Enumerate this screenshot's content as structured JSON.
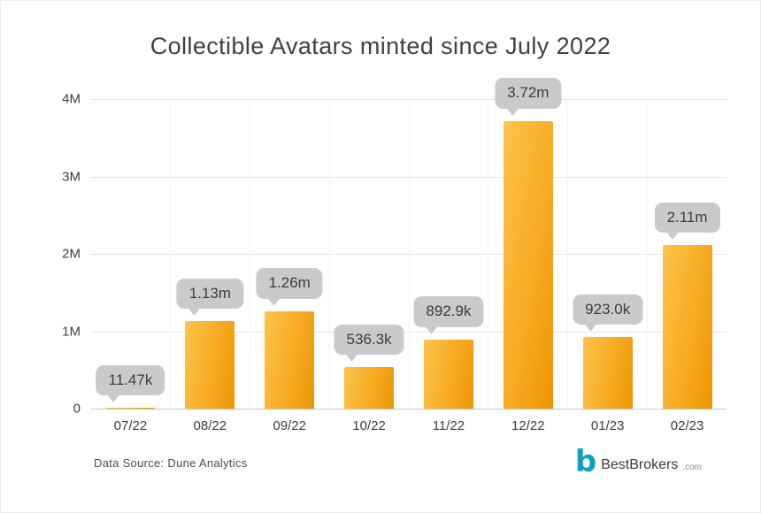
{
  "chart_data": {
    "type": "bar",
    "title": "Collectible Avatars minted since July 2022",
    "categories": [
      "07/22",
      "08/22",
      "09/22",
      "10/22",
      "11/22",
      "12/22",
      "01/23",
      "02/23"
    ],
    "values": [
      11470,
      1130000,
      1260000,
      536300,
      892900,
      3720000,
      923000,
      2110000
    ],
    "value_labels": [
      "11.47k",
      "1.13m",
      "1.26m",
      "536.3k",
      "892.9k",
      "3.72m",
      "923.0k",
      "2.11m"
    ],
    "xlabel": "",
    "ylabel": "",
    "ylim": [
      0,
      4000000
    ],
    "yticks": [
      {
        "value": 0,
        "label": "0"
      },
      {
        "value": 1000000,
        "label": "1M"
      },
      {
        "value": 2000000,
        "label": "2M"
      },
      {
        "value": 3000000,
        "label": "3M"
      },
      {
        "value": 4000000,
        "label": "4M"
      }
    ],
    "grid": true,
    "legend": false,
    "bar_color": "#F7A81F",
    "bubble_bg": "#CACACA",
    "bubble_text_color": "#3C3C3C"
  },
  "footer": {
    "source": "Data Source: Dune Analytics",
    "brand": "BestBrokers",
    "brand_suffix": ".com",
    "brand_color": "#10A0C2"
  }
}
